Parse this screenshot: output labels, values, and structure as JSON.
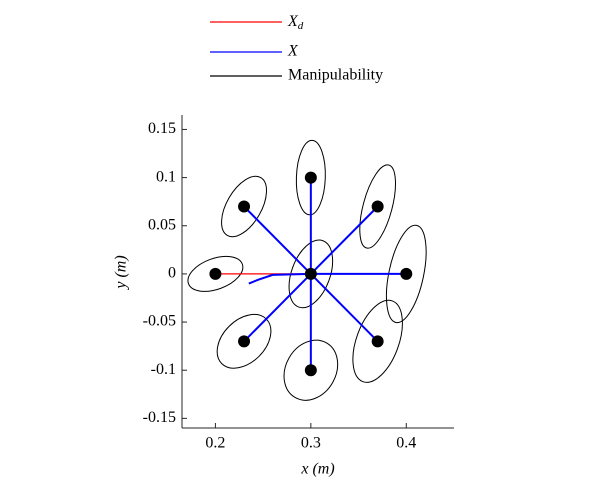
{
  "chart_data": {
    "type": "line",
    "xlabel": "x (m)",
    "ylabel": "y (m)",
    "xlim": [
      0.165,
      0.45
    ],
    "ylim": [
      -0.16,
      0.165
    ],
    "xticks": [
      0.2,
      0.3,
      0.4
    ],
    "yticks": [
      0.15,
      0.1,
      0.05,
      0,
      -0.05,
      -0.1,
      -0.15
    ],
    "legend": "north-outside",
    "series": [
      {
        "name": "X_d",
        "color": "#ff0000",
        "x": [
          0.3,
          0.4,
          null,
          0.3,
          0.37,
          null,
          0.3,
          0.3,
          null,
          0.3,
          0.23,
          null,
          0.3,
          0.2,
          null,
          0.3,
          0.23,
          null,
          0.3,
          0.3,
          null,
          0.3,
          0.37
        ],
        "y": [
          0,
          0,
          null,
          0,
          0.07,
          null,
          0,
          0.1,
          null,
          0,
          0.07,
          null,
          0,
          0,
          null,
          0,
          -0.07,
          null,
          0,
          -0.1,
          null,
          0,
          -0.07
        ]
      },
      {
        "name": "X",
        "color": "#0000ff",
        "x": [
          0.3,
          0.4,
          null,
          0.3,
          0.37,
          null,
          0.3,
          0.3,
          null,
          0.3,
          0.23,
          null,
          0.3,
          0.26,
          0.245,
          0.235,
          null,
          0.3,
          0.232,
          null,
          0.3,
          0.3,
          null,
          0.3,
          0.37
        ],
        "y": [
          0,
          0,
          null,
          0,
          0.07,
          null,
          0,
          0.1,
          null,
          0,
          0.07,
          null,
          0,
          -0.001,
          -0.006,
          -0.01,
          null,
          0,
          -0.068,
          null,
          0,
          -0.1,
          null,
          0,
          -0.07
        ]
      }
    ],
    "ellipses": {
      "name": "Manipulability",
      "color": "#000000",
      "cx": [
        0.3,
        0.3,
        0.37,
        0.23,
        0.4,
        0.2,
        0.23,
        0.3,
        0.37
      ],
      "cy": [
        0,
        0.1,
        0.07,
        0.07,
        0,
        0,
        -0.07,
        -0.1,
        -0.07
      ],
      "a": [
        0.037,
        0.039,
        0.045,
        0.035,
        0.052,
        0.03,
        0.033,
        0.033,
        0.045
      ],
      "b": [
        0.02,
        0.015,
        0.015,
        0.018,
        0.018,
        0.016,
        0.022,
        0.026,
        0.022
      ],
      "angle": [
        70,
        88,
        75,
        60,
        78,
        20,
        45,
        60,
        70
      ]
    },
    "points": {
      "color": "#000000",
      "x": [
        0.3,
        0.4,
        0.37,
        0.3,
        0.23,
        0.2,
        0.23,
        0.3,
        0.37
      ],
      "y": [
        0,
        0,
        0.07,
        0.1,
        0.07,
        0,
        -0.07,
        -0.1,
        -0.07
      ]
    }
  }
}
